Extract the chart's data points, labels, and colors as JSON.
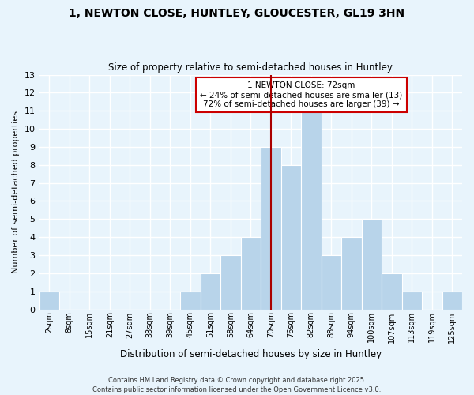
{
  "title": "1, NEWTON CLOSE, HUNTLEY, GLOUCESTER, GL19 3HN",
  "subtitle": "Size of property relative to semi-detached houses in Huntley",
  "xlabel": "Distribution of semi-detached houses by size in Huntley",
  "ylabel": "Number of semi-detached properties",
  "bin_labels": [
    "2sqm",
    "8sqm",
    "15sqm",
    "21sqm",
    "27sqm",
    "33sqm",
    "39sqm",
    "45sqm",
    "51sqm",
    "58sqm",
    "64sqm",
    "70sqm",
    "76sqm",
    "82sqm",
    "88sqm",
    "94sqm",
    "100sqm",
    "107sqm",
    "113sqm",
    "119sqm",
    "125sqm"
  ],
  "bin_values": [
    1,
    0,
    0,
    0,
    0,
    0,
    0,
    1,
    2,
    3,
    4,
    9,
    8,
    11,
    3,
    4,
    5,
    2,
    1,
    0,
    1
  ],
  "bar_color": "#b8d4ea",
  "bar_edge_color": "#b8d4ea",
  "vline_x": 11,
  "vline_color": "#aa0000",
  "annotation_title": "1 NEWTON CLOSE: 72sqm",
  "annotation_line1": "← 24% of semi-detached houses are smaller (13)",
  "annotation_line2": "72% of semi-detached houses are larger (39) →",
  "ylim": [
    0,
    13
  ],
  "yticks": [
    0,
    1,
    2,
    3,
    4,
    5,
    6,
    7,
    8,
    9,
    10,
    11,
    12,
    13
  ],
  "background_color": "#e8f4fc",
  "grid_color": "#ffffff",
  "footer_line1": "Contains HM Land Registry data © Crown copyright and database right 2025.",
  "footer_line2": "Contains public sector information licensed under the Open Government Licence v3.0."
}
